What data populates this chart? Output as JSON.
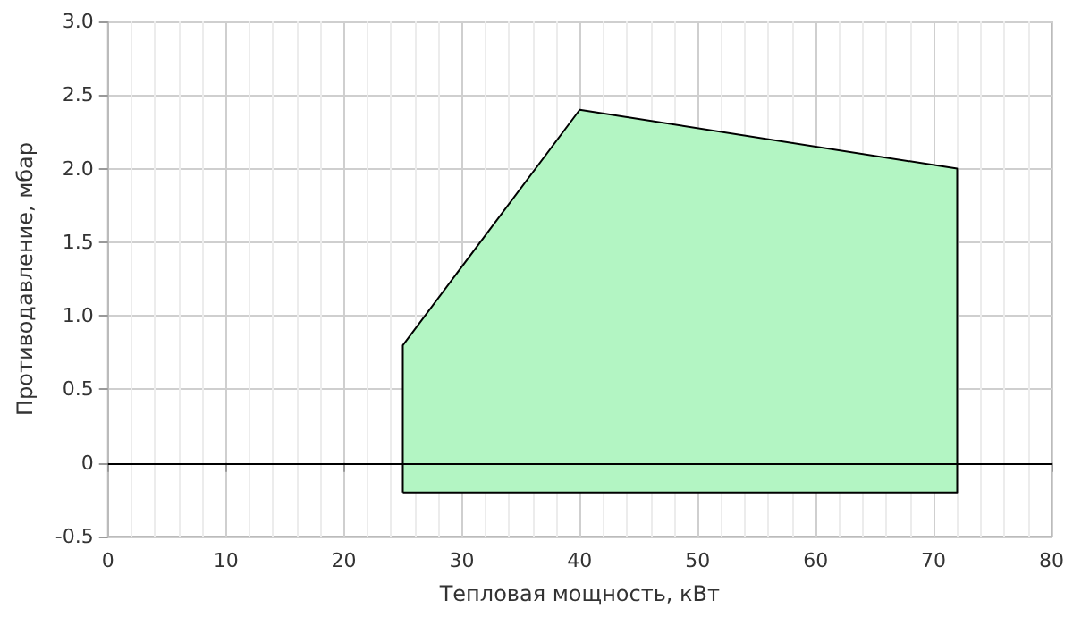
{
  "chart_data": {
    "type": "area",
    "xlabel": "Тепловая мощность, кВт",
    "ylabel": "Противодавление, мбар",
    "series": [
      {
        "color": "#b3f5c3",
        "x": [
          25,
          25,
          40,
          72,
          72,
          25
        ],
        "values": [
          -0.2,
          0.8,
          2.4,
          2.0,
          -0.2,
          -0.2
        ]
      }
    ],
    "xlim": [
      0,
      80
    ],
    "xticks": [
      0,
      10,
      20,
      30,
      40,
      50,
      60,
      70,
      80
    ],
    "ylim": [
      -0.5,
      3.0
    ],
    "yticks": [
      -0.5,
      0,
      0.5,
      {
        "value": 1,
        "label": "1.0"
      },
      1.5,
      {
        "value": 2,
        "label": "2.0"
      },
      2.5,
      {
        "value": 3,
        "label": "3.0"
      }
    ],
    "ref_lines": [
      {
        "axis": "y",
        "value": 0,
        "color": "#000000"
      }
    ],
    "grid": true,
    "marker": "none",
    "line_style": "solid"
  }
}
